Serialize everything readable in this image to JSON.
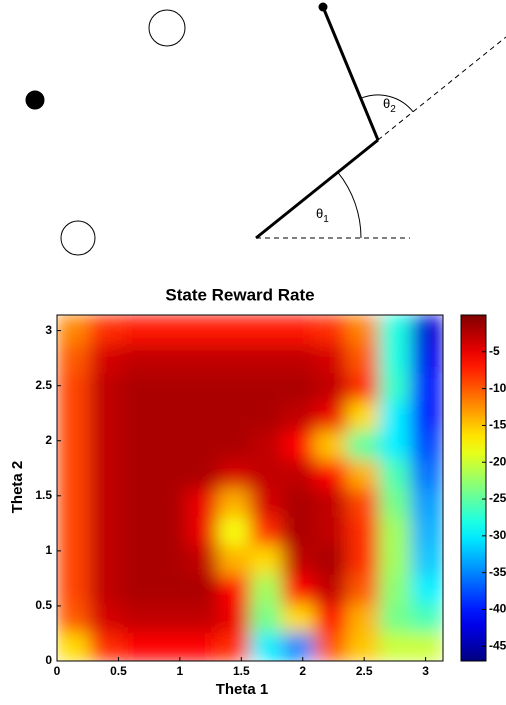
{
  "diagram": {
    "angle_labels": [
      {
        "symbol": "θ",
        "subscript": "1"
      },
      {
        "symbol": "θ",
        "subscript": "2"
      }
    ]
  },
  "chart_data": {
    "type": "heatmap",
    "title": "State Reward Rate",
    "x_label": "Theta 1",
    "y_label": "Theta 2",
    "xlim": [
      0,
      3.1416
    ],
    "ylim": [
      0,
      3.1416
    ],
    "xticks": [
      0,
      0.5,
      1,
      1.5,
      2,
      2.5,
      3
    ],
    "yticks": [
      0,
      0.5,
      1,
      1.5,
      2,
      2.5,
      3
    ],
    "x": [
      0.13,
      0.39,
      0.65,
      0.92,
      1.18,
      1.44,
      1.7,
      1.96,
      2.23,
      2.49,
      2.75,
      3.01
    ],
    "y": [
      0.13,
      0.39,
      0.65,
      0.92,
      1.18,
      1.44,
      1.7,
      1.96,
      2.23,
      2.49,
      2.75,
      3.01
    ],
    "values": [
      [
        -16,
        -8,
        -6,
        -6,
        -6,
        -8,
        -30,
        -35,
        -10,
        -15,
        -20,
        -20
      ],
      [
        -10,
        -4,
        -3,
        -3,
        -3,
        -5,
        -24,
        -16,
        -6,
        -14,
        -24,
        -26
      ],
      [
        -9,
        -3,
        -2,
        -2,
        -2,
        -6,
        -22,
        -6,
        -3,
        -10,
        -23,
        -30
      ],
      [
        -9,
        -3,
        -2,
        -2,
        -3,
        -14,
        -16,
        -3,
        -2,
        -8,
        -22,
        -32
      ],
      [
        -9,
        -3,
        -2,
        -2,
        -5,
        -18,
        -8,
        -2,
        -3,
        -8,
        -22,
        -33
      ],
      [
        -9,
        -3,
        -2,
        -2,
        -5,
        -14,
        -4,
        -2,
        -3,
        -9,
        -24,
        -34
      ],
      [
        -9,
        -3,
        -2,
        -2,
        -2,
        -4,
        -3,
        -3,
        -6,
        -14,
        -26,
        -36
      ],
      [
        -9,
        -3,
        -2,
        -2,
        -2,
        -2,
        -3,
        -6,
        -15,
        -25,
        -30,
        -38
      ],
      [
        -9,
        -3,
        -2,
        -2,
        -2,
        -2,
        -2,
        -3,
        -5,
        -16,
        -30,
        -40
      ],
      [
        -9,
        -3,
        -2,
        -2,
        -2,
        -2,
        -2,
        -2,
        -3,
        -8,
        -27,
        -40
      ],
      [
        -10,
        -4,
        -3,
        -3,
        -3,
        -3,
        -3,
        -3,
        -4,
        -10,
        -28,
        -42
      ],
      [
        -12,
        -8,
        -7,
        -7,
        -7,
        -7,
        -7,
        -7,
        -8,
        -12,
        -28,
        -43
      ]
    ],
    "colormap": "jet",
    "clim": [
      -47,
      0
    ],
    "cticks": [
      -5,
      -10,
      -15,
      -20,
      -25,
      -30,
      -35,
      -40,
      -45
    ]
  }
}
